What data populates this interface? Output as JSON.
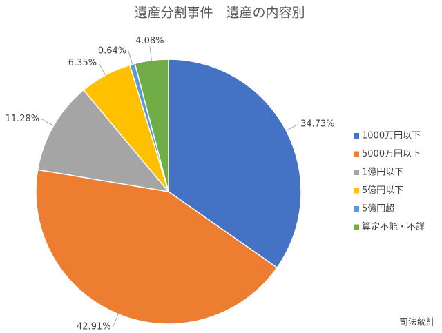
{
  "chart_data": {
    "type": "pie",
    "title": "遺産分割事件　遺産の内容別",
    "categories": [
      "1000万円以下",
      "5000万円以下",
      "1億円以下",
      "5億円以下",
      "5億円超",
      "算定不能・不詳"
    ],
    "values": [
      34.73,
      42.91,
      11.28,
      6.35,
      0.64,
      4.08
    ],
    "value_labels": [
      "34.73%",
      "42.91%",
      "11.28%",
      "6.35%",
      "0.64%",
      "4.08%"
    ],
    "colors": [
      "#4472c4",
      "#ed7d31",
      "#a5a5a5",
      "#ffc000",
      "#5b9bd5",
      "#70ad47"
    ],
    "source": "司法統計",
    "legend": "right"
  }
}
